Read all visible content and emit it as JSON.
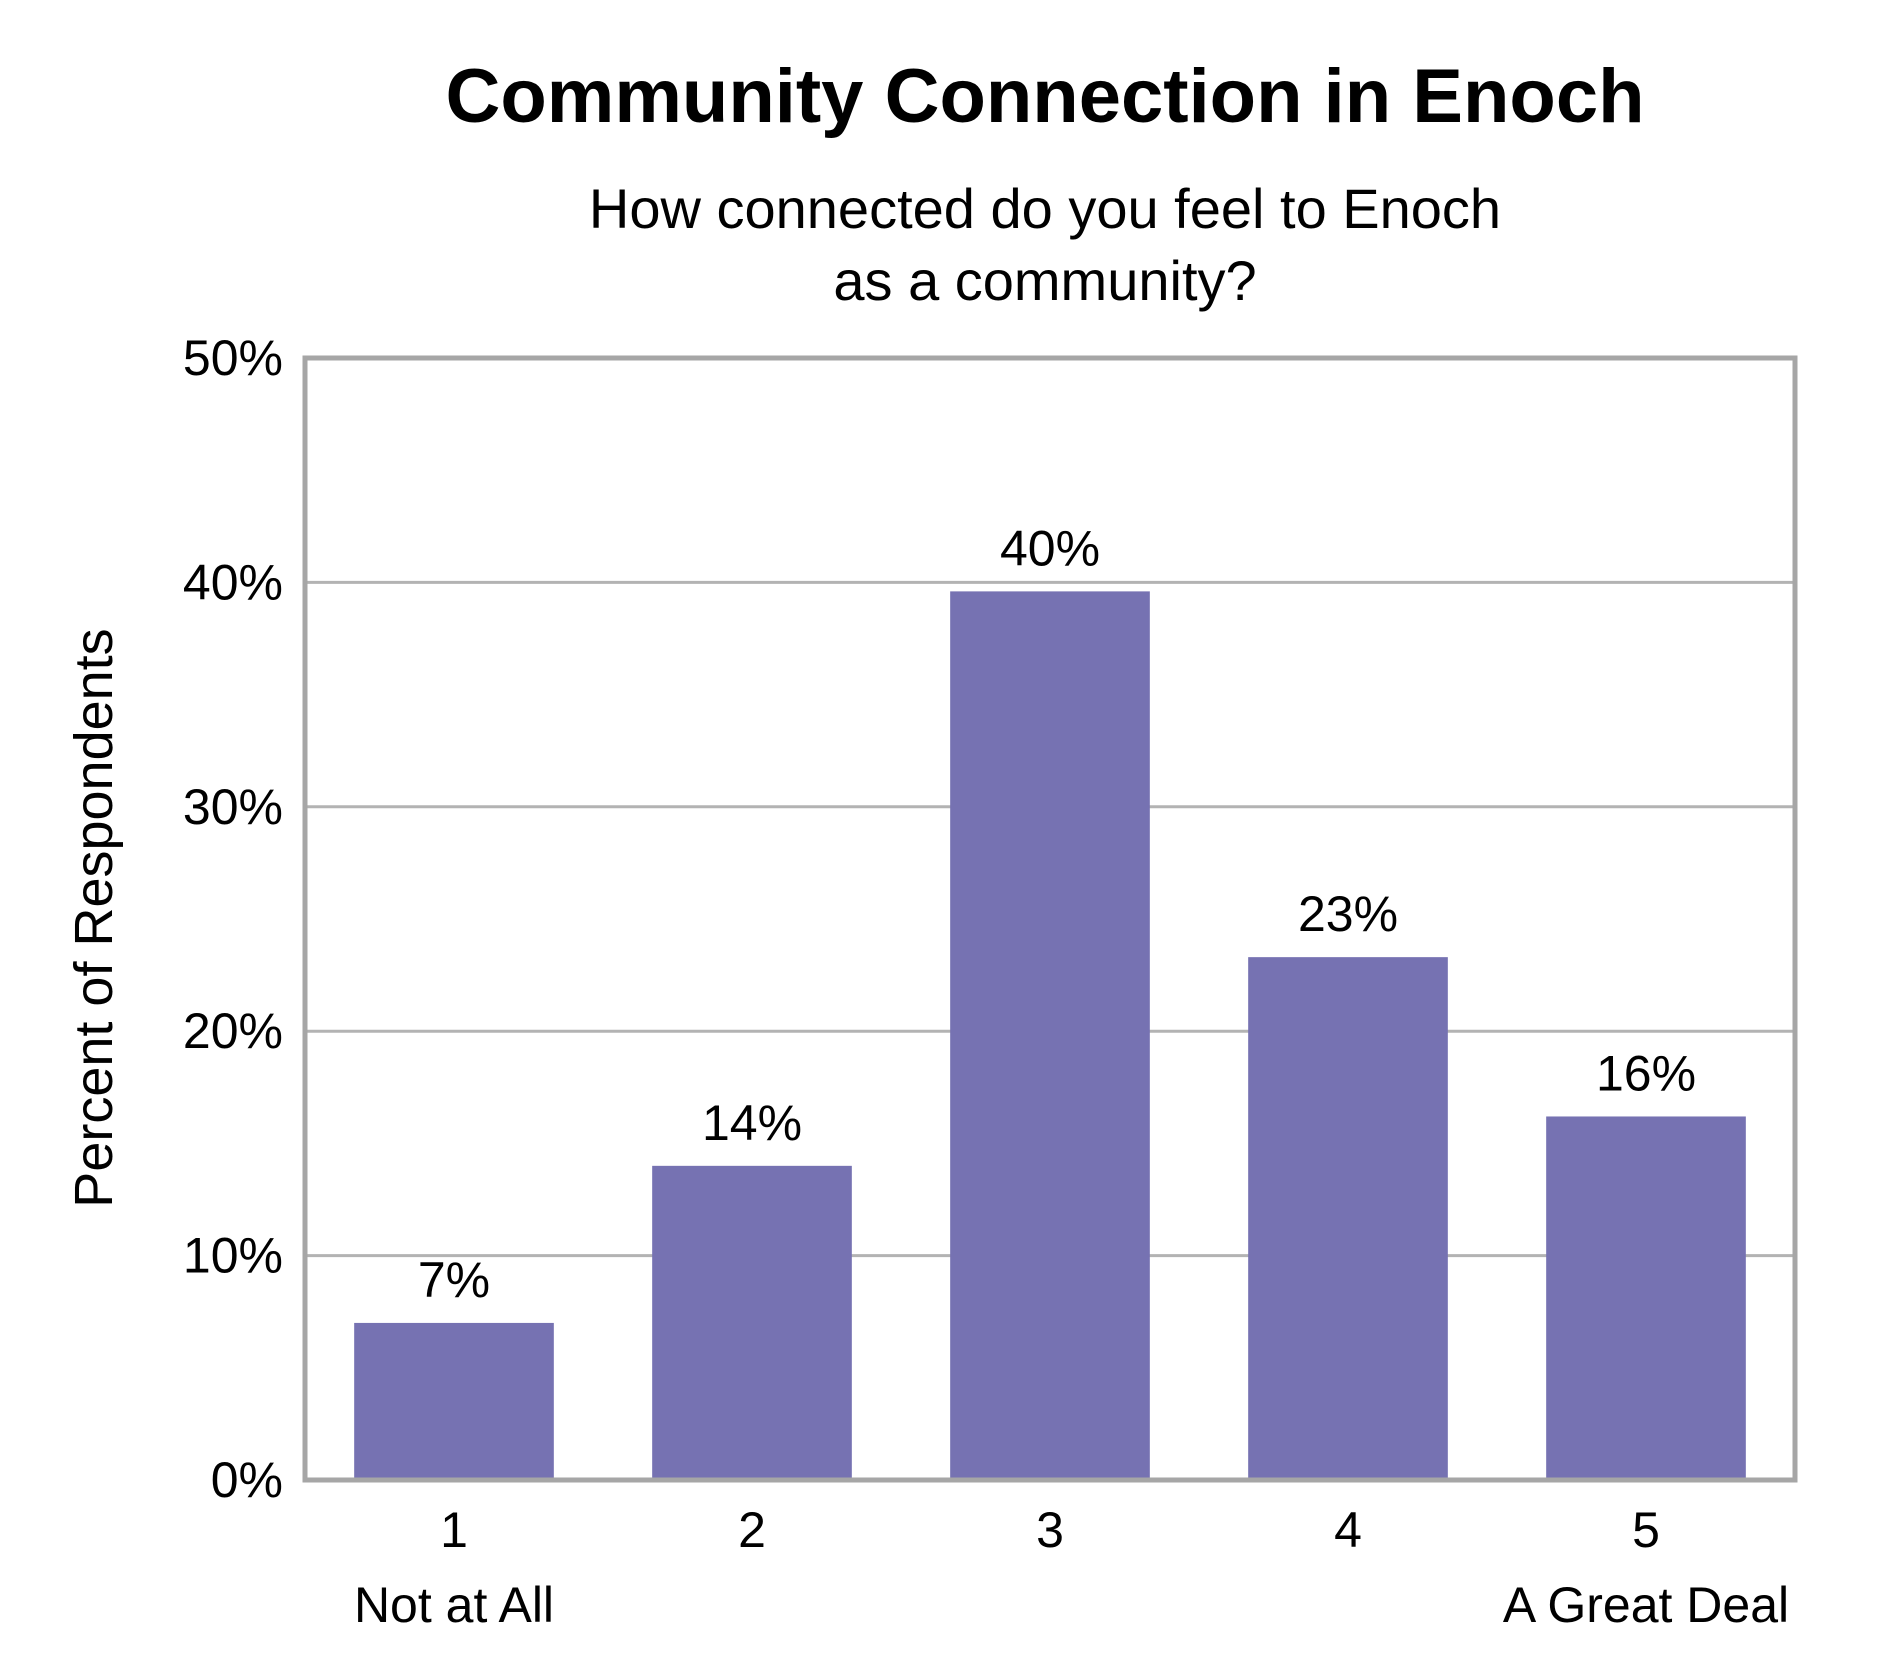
{
  "chart_data": {
    "type": "bar",
    "title": "Community Connection in Enoch",
    "subtitle_lines": [
      "How connected do you feel to Enoch",
      "as a community?"
    ],
    "xlabel": "",
    "ylabel": "Percent of Respondents",
    "categories": [
      "1",
      "2",
      "3",
      "4",
      "5"
    ],
    "category_sublabels": [
      "Not at All",
      "",
      "",
      "",
      "A Great Deal"
    ],
    "values": [
      7,
      14,
      39.6,
      23.3,
      16.2
    ],
    "data_labels": [
      "7%",
      "14%",
      "40%",
      "23%",
      "16%"
    ],
    "yticks": [
      0,
      10,
      20,
      30,
      40,
      50
    ],
    "ytick_labels": [
      "0%",
      "10%",
      "20%",
      "30%",
      "40%",
      "50%"
    ],
    "ylim": [
      0,
      50
    ],
    "grid": true,
    "bar_color": "#7672b2",
    "grid_color": "#b3b3b3"
  }
}
